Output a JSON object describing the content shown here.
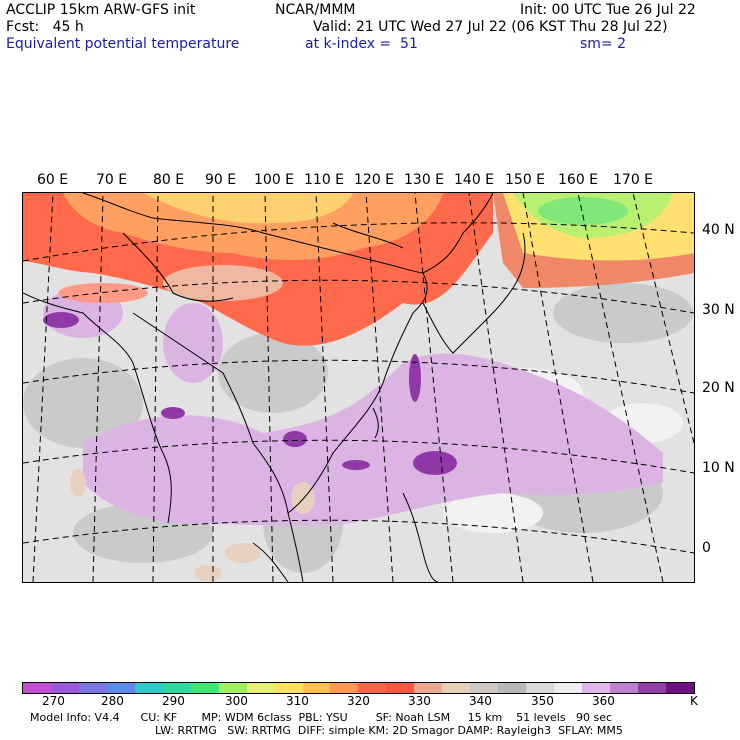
{
  "header": {
    "line1_left": "ACCLIP 15km ARW-GFS init",
    "line1_center": "NCAR/MMM",
    "line1_right": "Init: 00 UTC Tue 26 Jul 22",
    "line2_left": "Fcst:   45 h",
    "line2_right": "Valid: 21 UTC Wed 27 Jul 22 (06 KST Thu 28 Jul 22)",
    "line3_left": "Equivalent potential temperature",
    "line3_center": "at k-index =  51",
    "line3_right": "sm= 2"
  },
  "map": {
    "longitude_labels": [
      "60 E",
      "70 E",
      "80 E",
      "90 E",
      "100 E",
      "110 E",
      "120 E",
      "130 E",
      "140 E",
      "150 E",
      "160 E",
      "170 E"
    ],
    "latitude_labels": [
      "40 N",
      "30 N",
      "20 N",
      "10 N",
      "0"
    ]
  },
  "colorbar": {
    "colors": [
      "#c050d0",
      "#9a58d8",
      "#7878e0",
      "#5a8ce8",
      "#30c8c8",
      "#30d8a0",
      "#40e878",
      "#a0f060",
      "#e8f078",
      "#ffe060",
      "#ffc050",
      "#ff9850",
      "#ff6848",
      "#ff5840",
      "#f0a890",
      "#e8d0b8",
      "#d0c8c0",
      "#b8b8b8",
      "#d8d8d8",
      "#eeeeee",
      "#e0b8e8",
      "#c080d0",
      "#9040a8",
      "#701080"
    ],
    "labels": [
      "270",
      "280",
      "290",
      "300",
      "310",
      "320",
      "330",
      "340",
      "350",
      "360",
      "K"
    ]
  },
  "footer": {
    "line1": "Model Info: V4.4      CU: KF       MP: WDM 6class  PBL: YSU        SF: Noah LSM     15 km    51 levels   90 sec",
    "line2": "LW: RRTMG   SW: RRTMG  DIFF: simple KM: 2D Smagor DAMP: Rayleigh3  SFLAY: MM5"
  }
}
